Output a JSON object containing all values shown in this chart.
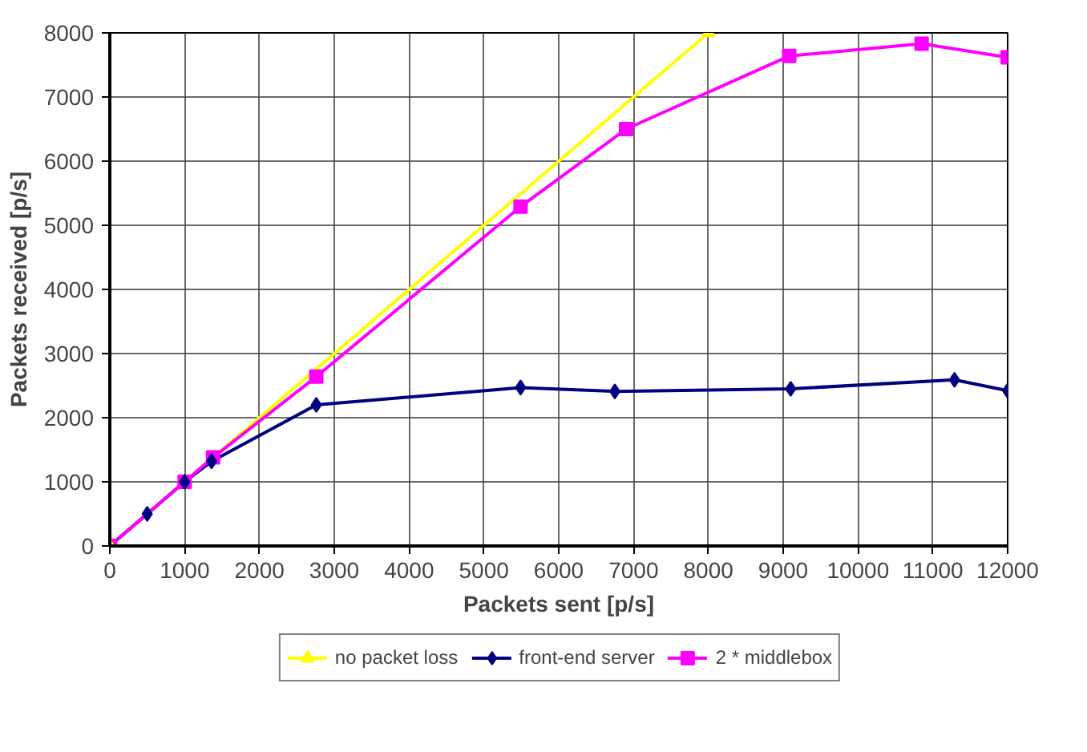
{
  "chart_data": {
    "type": "line",
    "xlabel": "Packets sent [p/s]",
    "ylabel": "Packets received [p/s]",
    "xlim": [
      0,
      12000
    ],
    "xticks": [
      0,
      1000,
      2000,
      3000,
      4000,
      5000,
      6000,
      7000,
      8000,
      9000,
      10000,
      11000,
      12000
    ],
    "ylim": [
      0,
      8000
    ],
    "yticks": [
      0,
      1000,
      2000,
      3000,
      4000,
      5000,
      6000,
      7000,
      8000
    ],
    "grid": true,
    "legend": "bottom",
    "line_style": "solid",
    "series": [
      {
        "name": "no packet loss",
        "color": "#ffff00",
        "marker": "triangle",
        "x": [
          0,
          8000
        ],
        "values": [
          0,
          8000
        ]
      },
      {
        "name": "front-end server",
        "color": "#000080",
        "marker": "diamond",
        "x": [
          0,
          500,
          1000,
          1360,
          2760,
          5490,
          6750,
          9100,
          11290,
          12000
        ],
        "values": [
          0,
          500,
          1000,
          1320,
          2200,
          2470,
          2410,
          2450,
          2590,
          2420
        ]
      },
      {
        "name": "2 * middlebox",
        "color": "#ff00ff",
        "marker": "square",
        "x": [
          0,
          1000,
          1380,
          2760,
          5490,
          6900,
          9080,
          10850,
          12000
        ],
        "values": [
          0,
          1000,
          1380,
          2640,
          5290,
          6500,
          7640,
          7830,
          7620
        ]
      }
    ]
  }
}
